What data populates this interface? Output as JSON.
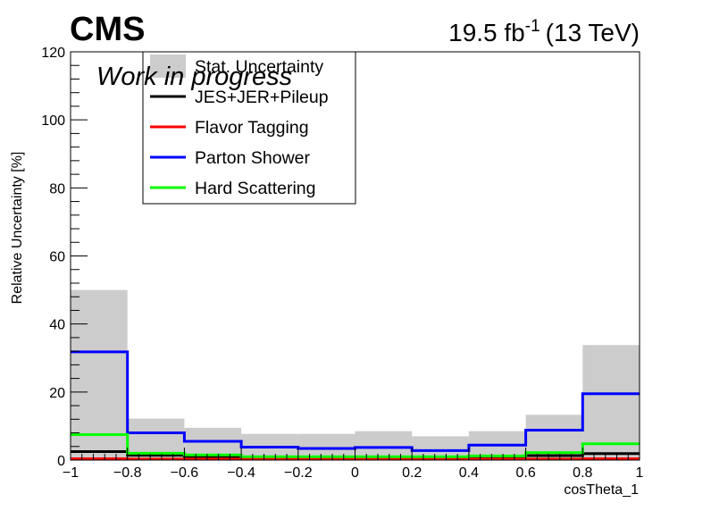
{
  "header": {
    "experiment": "CMS",
    "luminosity": "19.5 fb",
    "lumi_exponent": "-1",
    "energy": "(13 TeV)",
    "status": "Work in progress"
  },
  "chart_data": {
    "type": "histogram-step",
    "xlabel": "cosTheta_1",
    "ylabel": "Relative Uncertainty [%]",
    "xlim": [
      -1,
      1
    ],
    "ylim": [
      0,
      120
    ],
    "bin_edges": [
      -1,
      -0.8,
      -0.6,
      -0.4,
      -0.2,
      0,
      0.2,
      0.4,
      0.6,
      0.8,
      1
    ],
    "x_ticks": [
      -1,
      -0.8,
      -0.6,
      -0.4,
      -0.2,
      0,
      0.2,
      0.4,
      0.6,
      0.8,
      1
    ],
    "x_tick_labels": [
      "−1",
      "−0.8",
      "−0.6",
      "−0.4",
      "−0.2",
      "0",
      "0.2",
      "0.4",
      "0.6",
      "0.8",
      "1"
    ],
    "y_ticks": [
      0,
      20,
      40,
      60,
      80,
      100,
      120
    ],
    "y_tick_labels": [
      "0",
      "20",
      "40",
      "60",
      "80",
      "100",
      "120"
    ],
    "legend_position": "top-left",
    "series": [
      {
        "name": "Stat. Uncertainty",
        "style": "fill",
        "color": "#cccccc",
        "values": [
          50,
          12.2,
          9.5,
          7.7,
          7.7,
          8.5,
          7.0,
          8.5,
          13.3,
          33.8
        ]
      },
      {
        "name": "JES+JER+Pileup",
        "style": "line",
        "color": "#000000",
        "values": [
          2.5,
          1.4,
          1.0,
          0.8,
          0.8,
          0.8,
          0.8,
          0.9,
          1.3,
          1.9
        ]
      },
      {
        "name": "Flavor Tagging",
        "style": "line",
        "color": "#ff0000",
        "values": [
          0.4,
          0.3,
          0.3,
          0.3,
          0.3,
          0.3,
          0.3,
          0.3,
          0.3,
          0.4
        ]
      },
      {
        "name": "Parton Shower",
        "style": "line",
        "color": "#0000ff",
        "values": [
          31.8,
          8.0,
          5.5,
          3.8,
          3.4,
          3.7,
          2.8,
          4.4,
          8.8,
          19.5
        ]
      },
      {
        "name": "Hard Scattering",
        "style": "line",
        "color": "#00ff00",
        "values": [
          7.5,
          2.0,
          1.5,
          1.0,
          1.0,
          1.0,
          1.0,
          1.2,
          2.2,
          4.8
        ]
      }
    ]
  }
}
